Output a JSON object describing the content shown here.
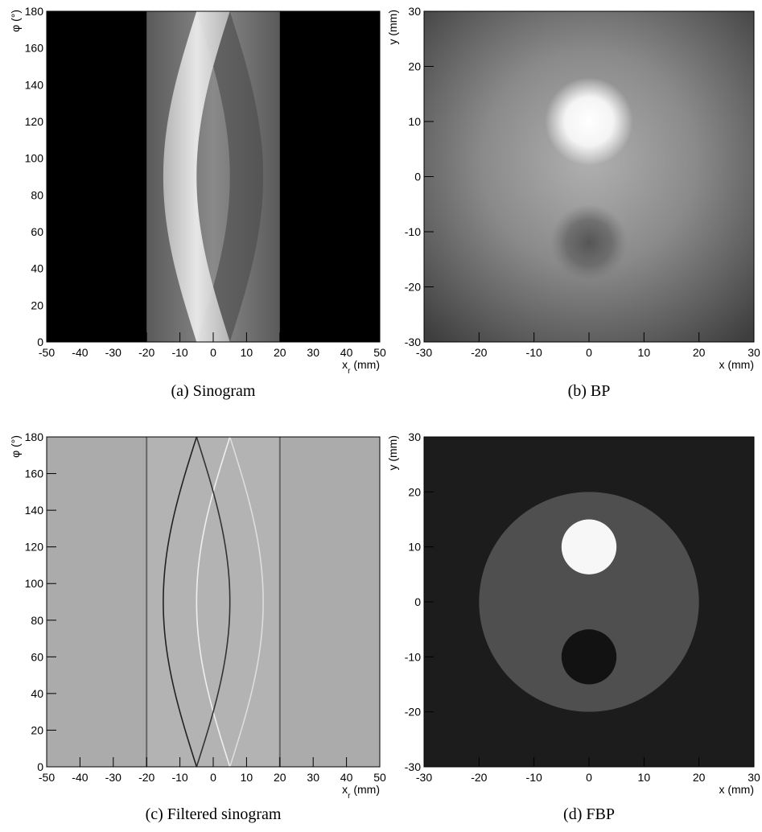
{
  "chart_data": [
    {
      "type": "image",
      "caption": "(a)  Sinogram",
      "xlim": [
        -50,
        50
      ],
      "ylim": [
        0,
        180
      ],
      "xticks": [
        -50,
        -40,
        -30,
        -20,
        -10,
        0,
        10,
        20,
        30,
        40,
        50
      ],
      "yticks": [
        0,
        20,
        40,
        60,
        80,
        100,
        120,
        140,
        160,
        180
      ],
      "xlabel": [
        "x",
        "r",
        " (mm)"
      ],
      "ylabel": "φ (°)"
    },
    {
      "type": "image",
      "caption": "(b)  BP",
      "xlim": [
        -30,
        30
      ],
      "ylim": [
        -30,
        30
      ],
      "xticks": [
        -30,
        -20,
        -10,
        0,
        10,
        20,
        30
      ],
      "yticks": [
        -30,
        -20,
        -10,
        0,
        10,
        20,
        30
      ],
      "xlabel": [
        "x (mm)"
      ],
      "ylabel": "y (mm)"
    },
    {
      "type": "image",
      "caption": "(c)  Filtered sinogram",
      "xlim": [
        -50,
        50
      ],
      "ylim": [
        0,
        180
      ],
      "xticks": [
        -50,
        -40,
        -30,
        -20,
        -10,
        0,
        10,
        20,
        30,
        40,
        50
      ],
      "yticks": [
        0,
        20,
        40,
        60,
        80,
        100,
        120,
        140,
        160,
        180
      ],
      "xlabel": [
        "x",
        "r",
        " (mm)"
      ],
      "ylabel": "φ (°)"
    },
    {
      "type": "image",
      "caption": "(d)  FBP",
      "xlim": [
        -30,
        30
      ],
      "ylim": [
        -30,
        30
      ],
      "xticks": [
        -30,
        -20,
        -10,
        0,
        10,
        20,
        30
      ],
      "yticks": [
        -30,
        -20,
        -10,
        0,
        10,
        20,
        30
      ],
      "xlabel": [
        "x (mm)"
      ],
      "ylabel": "y (mm)"
    }
  ]
}
